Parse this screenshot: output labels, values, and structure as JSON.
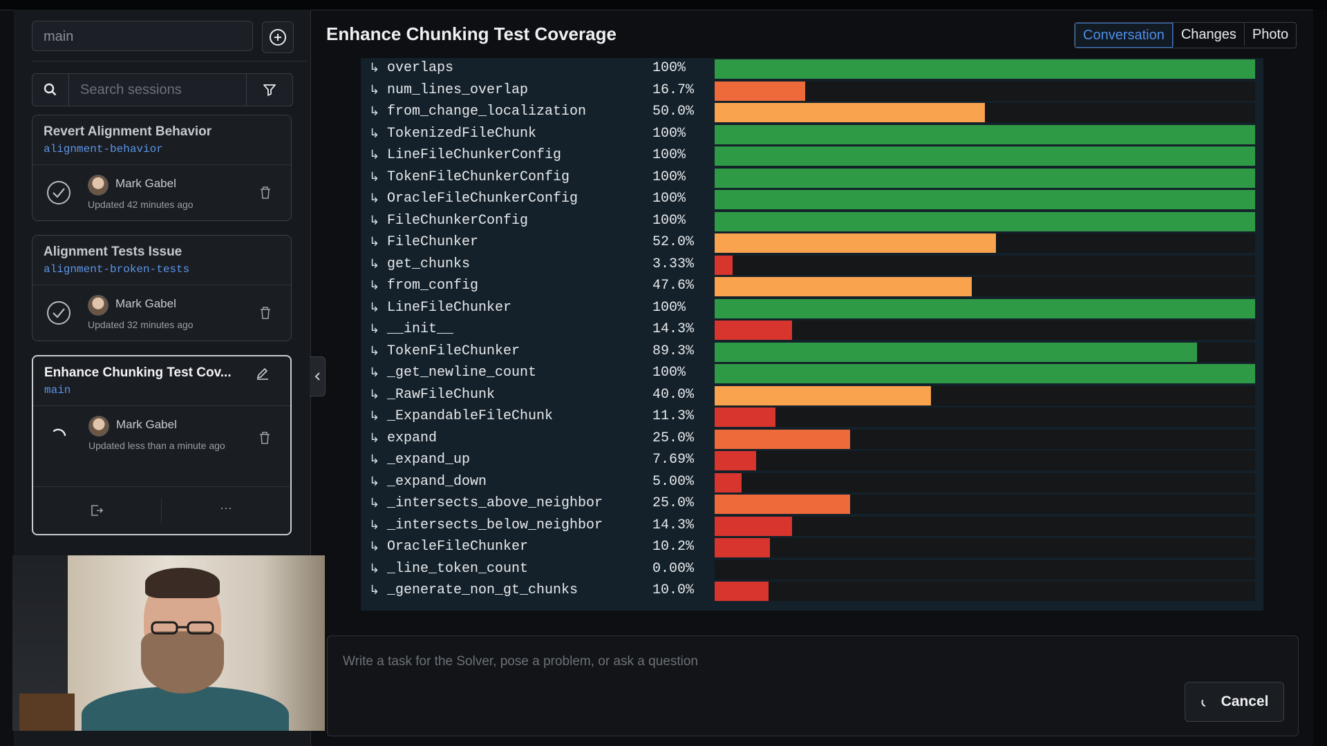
{
  "sidebar": {
    "branch_input_value": "main",
    "search_placeholder": "Search sessions",
    "sessions": [
      {
        "title": "Revert Alignment Behavior",
        "branch": "alignment-behavior",
        "user": "Mark Gabel",
        "updated": "Updated 42 minutes ago",
        "status": "done"
      },
      {
        "title": "Alignment Tests Issue",
        "branch": "alignment-broken-tests",
        "user": "Mark Gabel",
        "updated": "Updated 32 minutes ago",
        "status": "done"
      },
      {
        "title": "Enhance Chunking Test Cov...",
        "branch": "main",
        "user": "Mark Gabel",
        "updated": "Updated less than a minute ago",
        "status": "running"
      }
    ],
    "more_label": "···"
  },
  "header": {
    "title": "Enhance Chunking Test Coverage",
    "tabs": [
      {
        "label": "Conversation",
        "active": true
      },
      {
        "label": "Changes",
        "active": false
      },
      {
        "label": "Photo",
        "active": false
      }
    ]
  },
  "coverage": {
    "rows": [
      {
        "name": "overlaps",
        "pct": "100%",
        "value": 100,
        "color": "#2e9a45"
      },
      {
        "name": "num_lines_overlap",
        "pct": "16.7%",
        "value": 16.7,
        "color": "#ee6a3a"
      },
      {
        "name": "from_change_localization",
        "pct": "50.0%",
        "value": 50.0,
        "color": "#f9a34f"
      },
      {
        "name": "TokenizedFileChunk",
        "pct": "100%",
        "value": 100,
        "color": "#2e9a45"
      },
      {
        "name": "LineFileChunkerConfig",
        "pct": "100%",
        "value": 100,
        "color": "#2e9a45"
      },
      {
        "name": "TokenFileChunkerConfig",
        "pct": "100%",
        "value": 100,
        "color": "#2e9a45"
      },
      {
        "name": "OracleFileChunkerConfig",
        "pct": "100%",
        "value": 100,
        "color": "#2e9a45"
      },
      {
        "name": "FileChunkerConfig",
        "pct": "100%",
        "value": 100,
        "color": "#2e9a45"
      },
      {
        "name": "FileChunker",
        "pct": "52.0%",
        "value": 52.0,
        "color": "#f9a34f"
      },
      {
        "name": "get_chunks",
        "pct": "3.33%",
        "value": 3.33,
        "color": "#d8352e"
      },
      {
        "name": "from_config",
        "pct": "47.6%",
        "value": 47.6,
        "color": "#f9a34f"
      },
      {
        "name": "LineFileChunker",
        "pct": "100%",
        "value": 100,
        "color": "#2e9a45"
      },
      {
        "name": "__init__",
        "pct": "14.3%",
        "value": 14.3,
        "color": "#d8352e"
      },
      {
        "name": "TokenFileChunker",
        "pct": "89.3%",
        "value": 89.3,
        "color": "#2e9a45"
      },
      {
        "name": "_get_newline_count",
        "pct": "100%",
        "value": 100,
        "color": "#2e9a45"
      },
      {
        "name": "_RawFileChunk",
        "pct": "40.0%",
        "value": 40.0,
        "color": "#f9a34f"
      },
      {
        "name": "_ExpandableFileChunk",
        "pct": "11.3%",
        "value": 11.3,
        "color": "#d8352e"
      },
      {
        "name": "expand",
        "pct": "25.0%",
        "value": 25.0,
        "color": "#ee6a3a"
      },
      {
        "name": "_expand_up",
        "pct": "7.69%",
        "value": 7.69,
        "color": "#d8352e"
      },
      {
        "name": "_expand_down",
        "pct": "5.00%",
        "value": 5.0,
        "color": "#d8352e"
      },
      {
        "name": "_intersects_above_neighbor",
        "pct": "25.0%",
        "value": 25.0,
        "color": "#ee6a3a"
      },
      {
        "name": "_intersects_below_neighbor",
        "pct": "14.3%",
        "value": 14.3,
        "color": "#d8352e"
      },
      {
        "name": "OracleFileChunker",
        "pct": "10.2%",
        "value": 10.2,
        "color": "#d8352e"
      },
      {
        "name": "_line_token_count",
        "pct": "0.00%",
        "value": 0,
        "color": "#d8352e"
      },
      {
        "name": "_generate_non_gt_chunks",
        "pct": "10.0%",
        "value": 10.0,
        "color": "#d8352e"
      }
    ]
  },
  "composer": {
    "placeholder": "Write a task for the Solver, pose a problem, or ask a question",
    "cancel_label": "Cancel"
  }
}
